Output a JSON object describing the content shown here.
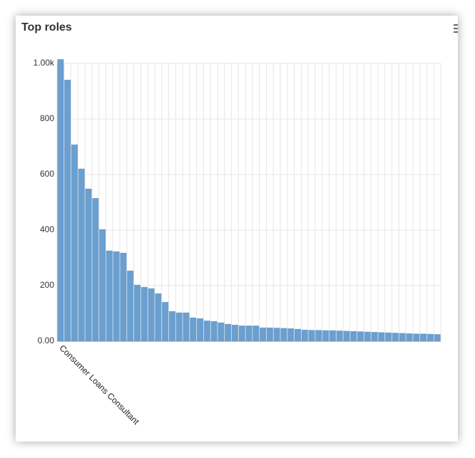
{
  "chart_data": {
    "type": "bar",
    "title": "Top roles",
    "categories": [
      "Consumer Loans Consultant",
      null,
      null,
      null,
      null,
      null,
      null,
      null,
      null,
      null,
      null,
      null,
      null,
      null,
      null,
      null,
      null,
      null,
      null,
      null,
      null,
      null,
      null,
      null,
      null,
      null,
      null,
      null,
      null,
      null,
      null,
      null,
      null,
      null,
      null,
      null,
      null,
      null,
      null,
      null,
      null,
      null,
      null,
      null,
      null,
      null,
      null,
      null,
      null,
      null,
      null,
      null,
      null,
      null,
      null
    ],
    "values": [
      1015,
      941,
      708,
      621,
      549,
      515,
      403,
      326,
      323,
      318,
      254,
      203,
      195,
      190,
      172,
      141,
      108,
      103,
      103,
      85,
      82,
      74,
      72,
      67,
      62,
      59,
      56,
      56,
      56,
      49,
      49,
      48,
      47,
      46,
      44,
      41,
      40,
      40,
      39,
      39,
      38,
      37,
      36,
      35,
      34,
      33,
      32,
      31,
      30,
      29,
      28,
      27,
      27,
      26,
      25
    ],
    "color": "#6a9fd0",
    "ylim": [
      0,
      1000
    ],
    "yticks": [
      {
        "value": 0,
        "label": "0.00"
      },
      200,
      400,
      600,
      800,
      {
        "value": 1000,
        "label": "1.00k"
      }
    ],
    "grid": true
  }
}
